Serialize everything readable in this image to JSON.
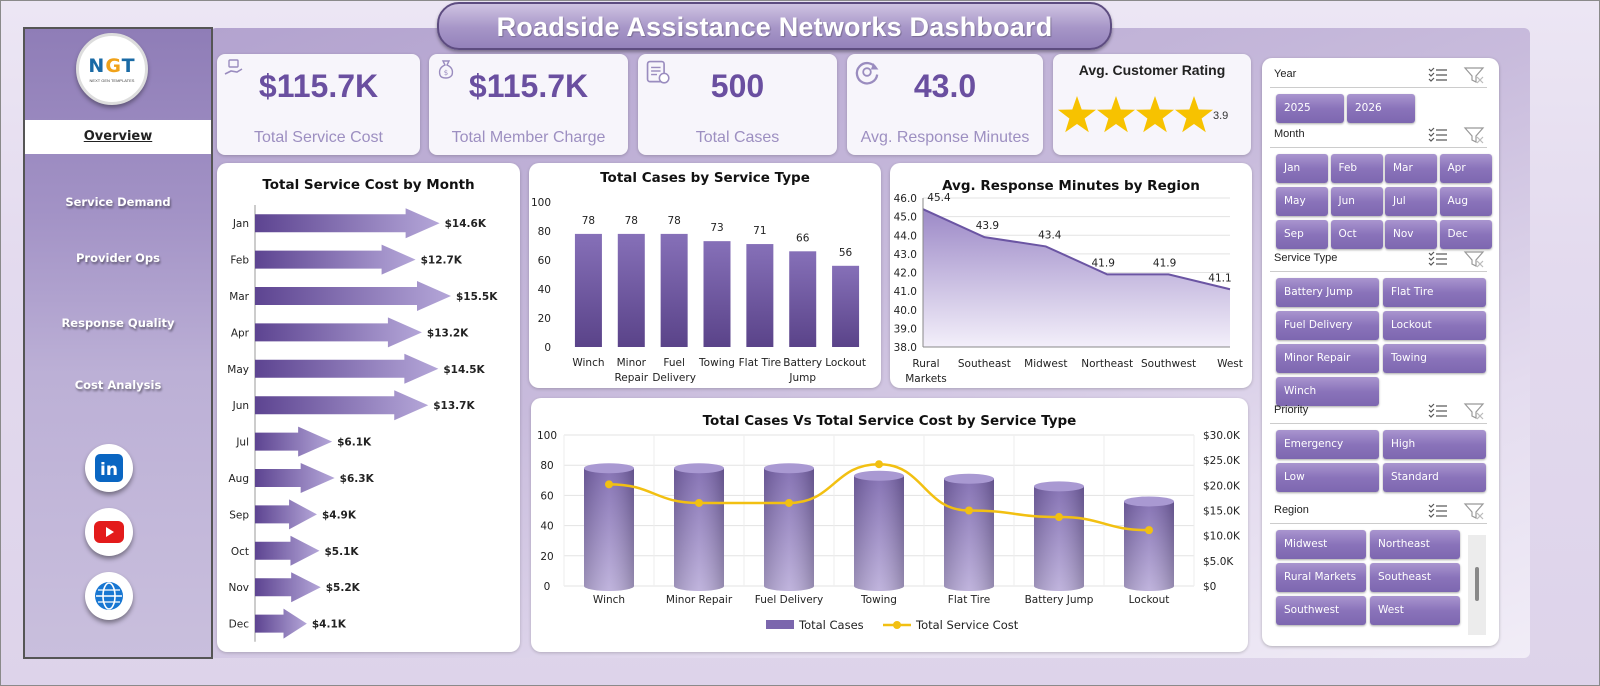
{
  "title": "Roadside Assistance Networks Dashboard",
  "logo": {
    "text": "NGT",
    "subtext": "NEXT GEN TEMPLATES"
  },
  "nav": [
    {
      "label": "Overview",
      "active": true
    },
    {
      "label": "Service Demand",
      "active": false
    },
    {
      "label": "Provider Ops",
      "active": false
    },
    {
      "label": "Response Quality",
      "active": false
    },
    {
      "label": "Cost Analysis",
      "active": false
    }
  ],
  "social": [
    "linkedin-icon",
    "youtube-icon",
    "globe-icon"
  ],
  "kpis": [
    {
      "value": "$115.7K",
      "label": "Total Service Cost",
      "icon": "money-hand-icon"
    },
    {
      "value": "$115.7K",
      "label": "Total Member Charge",
      "icon": "money-bag-icon"
    },
    {
      "value": "500",
      "label": "Total Cases",
      "icon": "clipboard-icon"
    },
    {
      "value": "43.0",
      "label": "Avg. Response Minutes",
      "icon": "refresh-clock-icon"
    }
  ],
  "rating": {
    "title": "Avg. Customer Rating",
    "value": "3.9",
    "stars": 4
  },
  "chart_data": [
    {
      "type": "bar",
      "orientation": "horizontal",
      "title": "Total Service Cost by Month",
      "categories": [
        "Jan",
        "Feb",
        "Mar",
        "Apr",
        "May",
        "Jun",
        "Jul",
        "Aug",
        "Sep",
        "Oct",
        "Nov",
        "Dec"
      ],
      "values": [
        14.6,
        12.7,
        15.5,
        13.2,
        14.5,
        13.7,
        6.1,
        6.3,
        4.9,
        5.1,
        5.2,
        4.1
      ],
      "data_labels": [
        "$14.6K",
        "$12.7K",
        "$15.5K",
        "$13.2K",
        "$14.5K",
        "$13.7K",
        "$6.1K",
        "$6.3K",
        "$4.9K",
        "$5.1K",
        "$5.2K",
        "$4.1K"
      ],
      "unit": "$K"
    },
    {
      "type": "bar",
      "title": "Total Cases by Service Type",
      "categories": [
        "Winch",
        "Minor Repair",
        "Fuel Delivery",
        "Towing",
        "Flat Tire",
        "Battery Jump",
        "Lockout"
      ],
      "values": [
        78,
        78,
        78,
        73,
        71,
        66,
        56
      ],
      "ylim": [
        0,
        100
      ],
      "yticks": [
        "0",
        "20",
        "40",
        "60",
        "80",
        "100"
      ]
    },
    {
      "type": "area",
      "title": "Avg. Response Minutes by Region",
      "categories": [
        "Rural Markets",
        "Southeast",
        "Midwest",
        "Northeast",
        "Southwest",
        "West"
      ],
      "values": [
        45.4,
        43.9,
        43.4,
        41.9,
        41.9,
        41.1
      ],
      "ylim": [
        38.0,
        46.0
      ],
      "yticks": [
        "38.0",
        "39.0",
        "40.0",
        "41.0",
        "42.0",
        "43.0",
        "44.0",
        "45.0",
        "46.0"
      ]
    },
    {
      "type": "bar",
      "title": "Total Cases Vs Total Service Cost by Service Type",
      "categories": [
        "Winch",
        "Minor Repair",
        "Fuel Delivery",
        "Towing",
        "Flat Tire",
        "Battery Jump",
        "Lockout"
      ],
      "series": [
        {
          "name": "Total Cases",
          "type": "bar",
          "axis": "left",
          "values": [
            78,
            78,
            78,
            73,
            71,
            66,
            56
          ]
        },
        {
          "name": "Total Service Cost",
          "type": "line",
          "axis": "right",
          "values": [
            20200,
            16500,
            16500,
            24200,
            15000,
            13700,
            11100
          ]
        }
      ],
      "ylim": [
        0,
        100
      ],
      "y2lim": [
        0,
        30000
      ],
      "yticks": [
        "0",
        "20",
        "40",
        "60",
        "80",
        "100"
      ],
      "y2ticks": [
        "$0",
        "$5.0K",
        "$10.0K",
        "$15.0K",
        "$20.0K",
        "$25.0K",
        "$30.0K"
      ],
      "legend": "bottom"
    }
  ],
  "slicers": {
    "year": {
      "title": "Year",
      "options": [
        "2025",
        "2026"
      ]
    },
    "month": {
      "title": "Month",
      "options": [
        "Jan",
        "Feb",
        "Mar",
        "Apr",
        "May",
        "Jun",
        "Jul",
        "Aug",
        "Sep",
        "Oct",
        "Nov",
        "Dec"
      ]
    },
    "service_type": {
      "title": "Service Type",
      "options": [
        "Battery Jump",
        "Flat Tire",
        "Fuel Delivery",
        "Lockout",
        "Minor Repair",
        "Towing",
        "Winch"
      ]
    },
    "priority": {
      "title": "Priority",
      "options": [
        "Emergency",
        "High",
        "Low",
        "Standard"
      ]
    },
    "region": {
      "title": "Region",
      "options": [
        "Midwest",
        "Northeast",
        "Rural Markets",
        "Southeast",
        "Southwest",
        "West"
      ]
    }
  },
  "colors": {
    "accent": "#6a4fa0",
    "bar": "#7b66ad",
    "line": "#f2c012",
    "star": "#f7c200"
  }
}
